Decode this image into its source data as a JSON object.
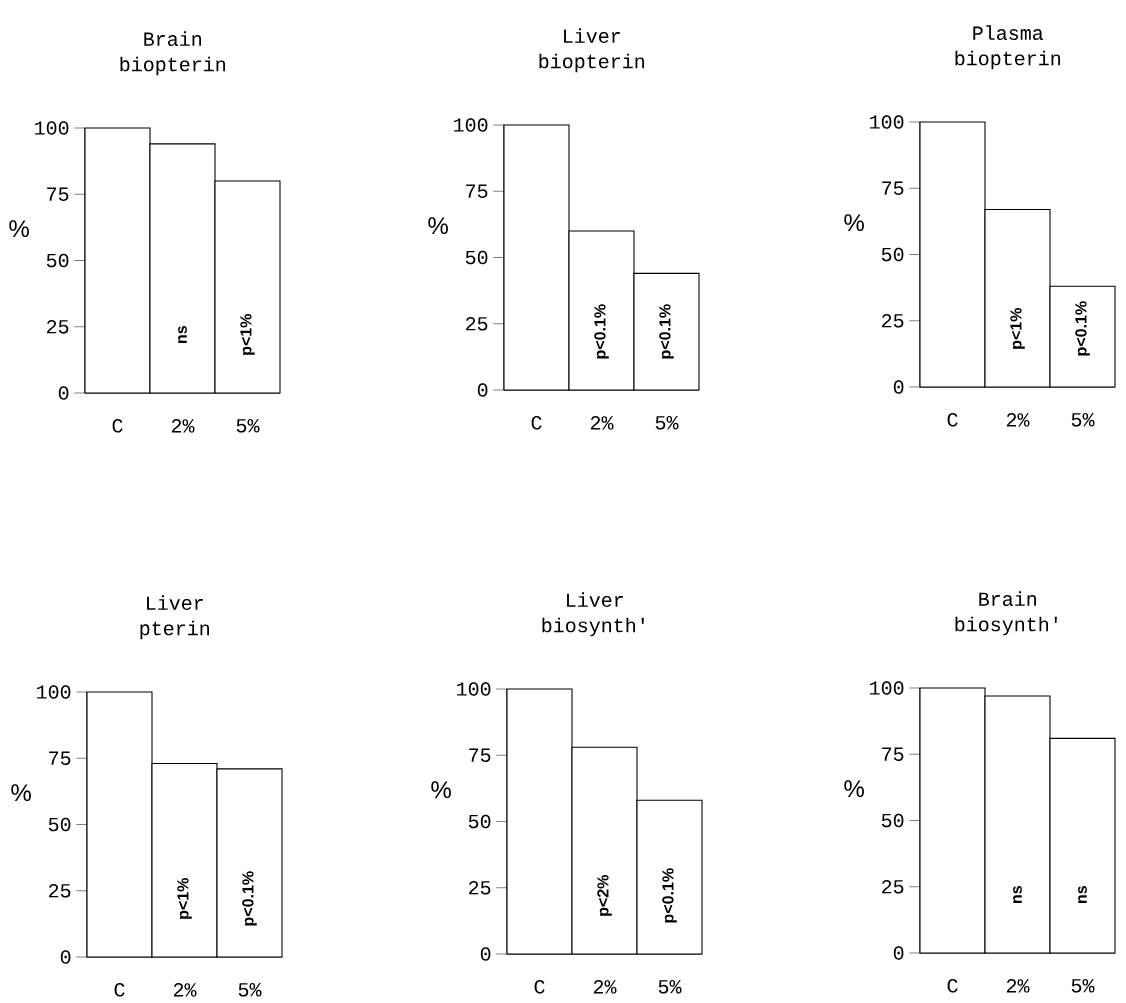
{
  "chart_data": [
    {
      "type": "bar",
      "title": "Brain biopterin",
      "ylabel": "%",
      "categories": [
        "C",
        "2%",
        "5%"
      ],
      "values": [
        100,
        94,
        80
      ],
      "color": "#ffffff",
      "ylim": [
        0,
        100
      ],
      "yticks": [
        0,
        25,
        50,
        75,
        100
      ],
      "annotations": [
        "ns",
        "p<1%"
      ]
    },
    {
      "type": "bar",
      "title": "Liver biopterin",
      "ylabel": "%",
      "categories": [
        "C",
        "2%",
        "5%"
      ],
      "values": [
        100,
        60,
        44
      ],
      "color": "#ffffff",
      "ylim": [
        0,
        100
      ],
      "yticks": [
        0,
        25,
        50,
        75,
        100
      ],
      "annotations": [
        "p<0.1%",
        "p<0.1%"
      ]
    },
    {
      "type": "bar",
      "title": "Plasma biopterin",
      "ylabel": "%",
      "categories": [
        "C",
        "2%",
        "5%"
      ],
      "values": [
        100,
        67,
        38
      ],
      "color": "#ffffff",
      "ylim": [
        0,
        100
      ],
      "yticks": [
        0,
        25,
        50,
        75,
        100
      ],
      "annotations": [
        "p<1%",
        "p<0.1%"
      ]
    },
    {
      "type": "bar",
      "title": "Liver pterin",
      "ylabel": "%",
      "categories": [
        "C",
        "2%",
        "5%"
      ],
      "values": [
        100,
        73,
        71
      ],
      "color": "#ffffff",
      "ylim": [
        0,
        100
      ],
      "yticks": [
        0,
        25,
        50,
        75,
        100
      ],
      "annotations": [
        "p<1%",
        "p<0.1%"
      ]
    },
    {
      "type": "bar",
      "title": "Liver biosynth'",
      "ylabel": "%",
      "categories": [
        "C",
        "2%",
        "5%"
      ],
      "values": [
        100,
        78,
        58
      ],
      "color": "#ffffff",
      "ylim": [
        0,
        100
      ],
      "yticks": [
        0,
        25,
        50,
        75,
        100
      ],
      "annotations": [
        "p<2%",
        "p<0.1%"
      ]
    },
    {
      "type": "bar",
      "title": "Brain biosynth'",
      "ylabel": "%",
      "categories": [
        "C",
        "2%",
        "5%"
      ],
      "values": [
        100,
        97,
        81
      ],
      "color": "#ffffff",
      "ylim": [
        0,
        100
      ],
      "yticks": [
        0,
        25,
        50,
        75,
        100
      ],
      "annotations": [
        "ns",
        "ns"
      ]
    }
  ]
}
